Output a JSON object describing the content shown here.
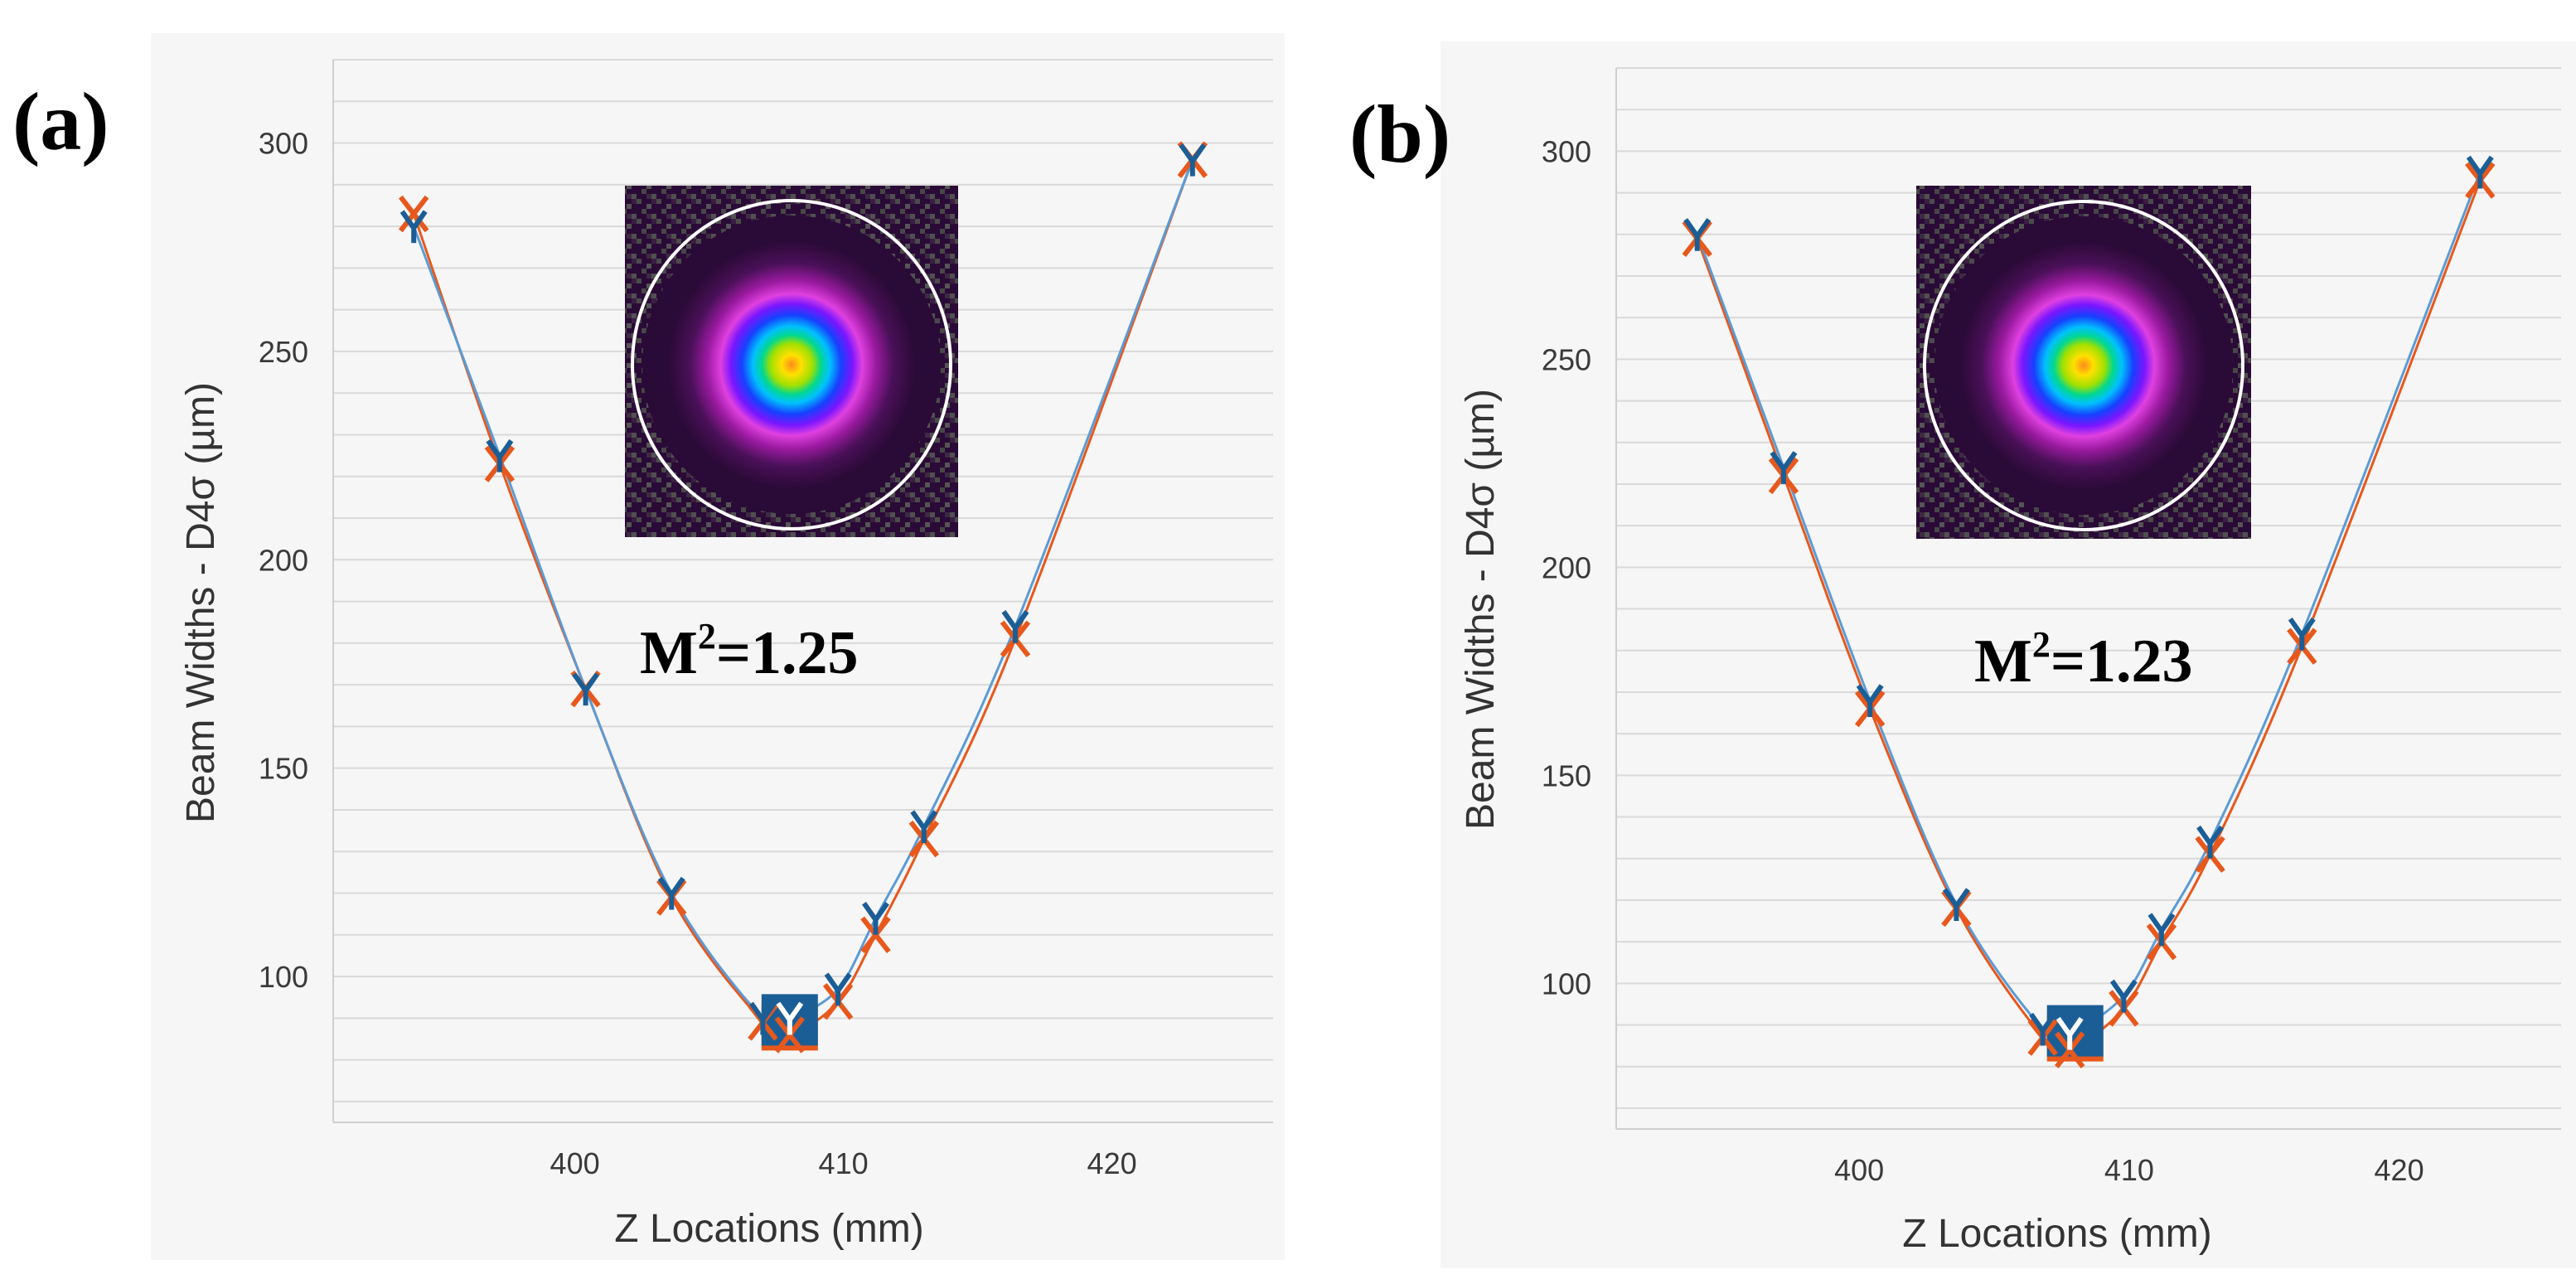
{
  "figure": {
    "x_marker_color": "#E8581C",
    "y_marker_color": "#1B5E96",
    "x_line_color": "#E8581C",
    "y_line_color": "#5B9BD5",
    "panel_bg_color": "#F6F6F6",
    "grid_color": "#D9D9D9",
    "waist_box_color": "#1B5E96"
  },
  "chart_data": [
    {
      "panel_label": "(a)",
      "type": "line",
      "title": "",
      "xlabel": "Z Locations (mm)",
      "ylabel": "Beam Widths - D4σ (µm)",
      "xlim": [
        391,
        426
      ],
      "ylim": [
        65,
        320
      ],
      "xticks": [
        400,
        410,
        420
      ],
      "yticks": [
        100,
        150,
        200,
        250,
        300
      ],
      "x": [
        394,
        397.2,
        400.4,
        403.6,
        407,
        408,
        409.8,
        411.2,
        413,
        416.4,
        423
      ],
      "series": [
        {
          "name": "X",
          "marker": "X",
          "values": [
            283,
            223,
            169,
            119,
            89,
            86,
            94,
            110,
            133,
            181,
            296
          ]
        },
        {
          "name": "Y",
          "marker": "Y",
          "values": [
            280,
            225,
            169,
            120,
            90,
            90,
            97,
            114,
            136,
            184,
            296
          ]
        }
      ],
      "waist_marker": {
        "x": 408,
        "y": 89
      },
      "m2": {
        "base": "M",
        "exponent": "2",
        "rest": "=1.25"
      },
      "inset": {
        "description": "beam profile",
        "outline_color": "#FFFFFF"
      }
    },
    {
      "panel_label": "(b)",
      "type": "line",
      "title": "",
      "xlabel": "Z Locations (mm)",
      "ylabel": "Beam Widths - D4σ (µm)",
      "xlim": [
        391,
        426
      ],
      "ylim": [
        65,
        320
      ],
      "xticks": [
        400,
        410,
        420
      ],
      "yticks": [
        100,
        150,
        200,
        250,
        300
      ],
      "x": [
        394,
        397.2,
        400.4,
        403.6,
        406.8,
        407.8,
        409.8,
        411.2,
        413,
        416.4,
        423
      ],
      "series": [
        {
          "name": "X",
          "marker": "X",
          "values": [
            279,
            222,
            166,
            118,
            87,
            84,
            94,
            110,
            131,
            181,
            293
          ]
        },
        {
          "name": "Y",
          "marker": "Y",
          "values": [
            280,
            224,
            168,
            119,
            89,
            88,
            97,
            113,
            134,
            184,
            295
          ]
        }
      ],
      "waist_marker": {
        "x": 408,
        "y": 88
      },
      "m2": {
        "base": "M",
        "exponent": "2",
        "rest": "=1.23"
      },
      "inset": {
        "description": "beam profile",
        "outline_color": "#FFFFFF"
      }
    }
  ]
}
